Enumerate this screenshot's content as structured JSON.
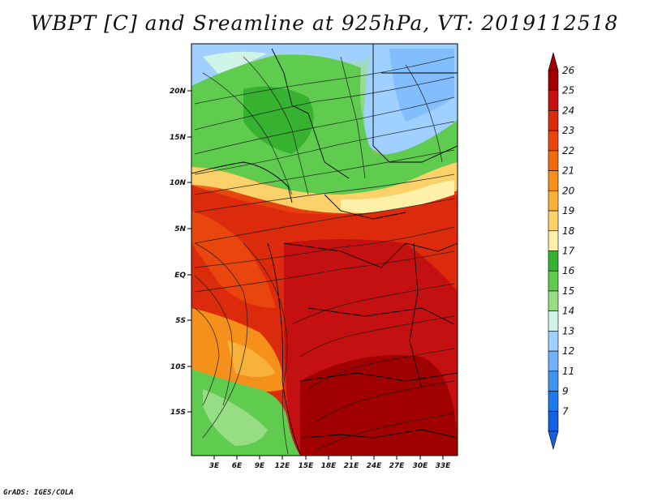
{
  "title": "WBPT [C] and Sreamline at 925hPa, VT: 2019112518",
  "credit": "GrADS: IGES/COLA",
  "map": {
    "lat_labels": [
      "20N",
      "15N",
      "10N",
      "5N",
      "EQ",
      "5S",
      "10S",
      "15S"
    ],
    "lon_labels": [
      "3E",
      "6E",
      "9E",
      "12E",
      "15E",
      "18E",
      "21E",
      "24E",
      "27E",
      "30E",
      "33E"
    ]
  },
  "colorbar": {
    "labels": [
      "26",
      "25",
      "24",
      "23",
      "22",
      "21",
      "20",
      "19",
      "18",
      "17",
      "16",
      "15",
      "14",
      "13",
      "12",
      "11",
      "9",
      "7"
    ],
    "colors": [
      "#a00000",
      "#c41010",
      "#dc2a0c",
      "#e8460c",
      "#f06a10",
      "#f5901a",
      "#f7b23c",
      "#fbd26a",
      "#fdf0a8",
      "#37b130",
      "#5fcb4f",
      "#96dd84",
      "#cff3e6",
      "#9fd0ff",
      "#6fb2fb",
      "#3f94f2",
      "#1f78ec",
      "#1460e0"
    ]
  }
}
